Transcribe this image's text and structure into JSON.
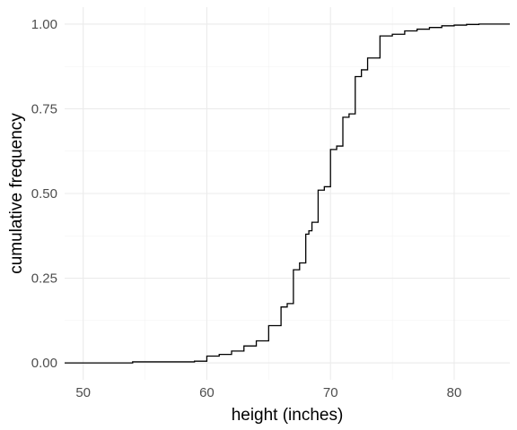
{
  "chart_data": {
    "type": "line",
    "subtype": "ecdf-step",
    "title": "",
    "xlabel": "height (inches)",
    "ylabel": "cumulative frequency",
    "xlim": [
      48.5,
      84.5
    ],
    "ylim": [
      -0.05,
      1.05
    ],
    "x_ticks": [
      50,
      60,
      70,
      80
    ],
    "x_tick_labels": [
      "50",
      "60",
      "70",
      "80"
    ],
    "y_ticks": [
      0,
      0.25,
      0.5,
      0.75,
      1
    ],
    "y_tick_labels": [
      "0.00",
      "0.25",
      "0.50",
      "0.75",
      "1.00"
    ],
    "grid": true,
    "legend": "none",
    "line_color": "#000000",
    "series": [
      {
        "x": [
          48.5,
          54,
          59,
          60,
          61,
          62,
          63,
          64,
          65,
          66,
          66.5,
          67,
          67.5,
          68,
          68.25,
          68.5,
          69,
          69.5,
          70,
          70.5,
          71,
          71.5,
          72,
          72.5,
          73,
          74,
          75,
          76,
          77,
          78,
          79,
          80,
          81,
          82,
          84.5
        ],
        "y": [
          0,
          0.003,
          0.005,
          0.02,
          0.025,
          0.035,
          0.05,
          0.065,
          0.11,
          0.165,
          0.175,
          0.275,
          0.295,
          0.38,
          0.39,
          0.415,
          0.51,
          0.52,
          0.63,
          0.64,
          0.725,
          0.735,
          0.845,
          0.865,
          0.9,
          0.965,
          0.97,
          0.98,
          0.985,
          0.99,
          0.995,
          0.997,
          0.999,
          1.0,
          1.0
        ]
      }
    ]
  }
}
